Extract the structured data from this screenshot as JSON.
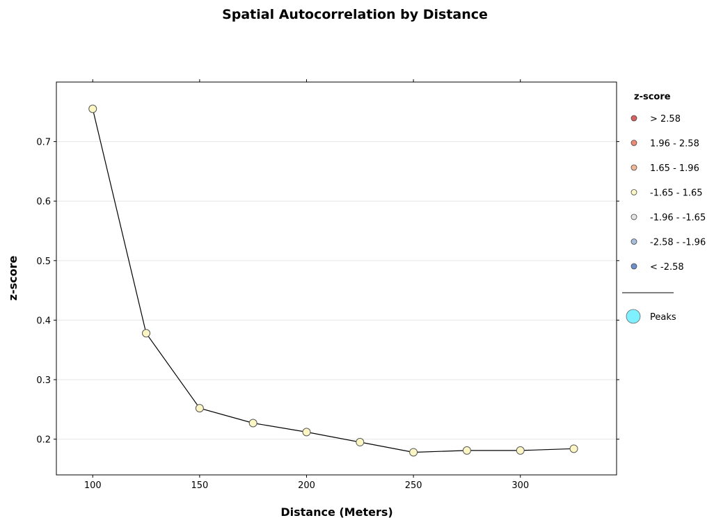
{
  "chart_data": {
    "type": "line",
    "title": "Spatial Autocorrelation by Distance",
    "xlabel": "Distance (Meters)",
    "ylabel": "z-score",
    "x": [
      100,
      125,
      150,
      175,
      200,
      225,
      250,
      275,
      300,
      325
    ],
    "xticks": [
      100,
      150,
      200,
      250,
      300
    ],
    "yticks": [
      0.2,
      0.3,
      0.4,
      0.5,
      0.6,
      0.7
    ],
    "xlim": [
      83,
      345
    ],
    "ylim": [
      0.14,
      0.8
    ],
    "grid": true,
    "series": [
      {
        "values": [
          0.755,
          0.378,
          0.252,
          0.227,
          0.212,
          0.195,
          0.178,
          0.181,
          0.181,
          0.184
        ],
        "classes": [
          "-1.65 - 1.65",
          "-1.65 - 1.65",
          "-1.65 - 1.65",
          "-1.65 - 1.65",
          "-1.65 - 1.65",
          "-1.65 - 1.65",
          "-1.65 - 1.65",
          "-1.65 - 1.65",
          "-1.65 - 1.65",
          "-1.65 - 1.65"
        ]
      }
    ],
    "legend": {
      "title": "z-score",
      "position": "right",
      "items": [
        {
          "label": "> 2.58",
          "color": "#d76060",
          "icon": "red-point-icon"
        },
        {
          "label": "1.96 - 2.58",
          "color": "#ec8a76",
          "icon": "salmon-point-icon"
        },
        {
          "label": "1.65 - 1.96",
          "color": "#f2b896",
          "icon": "peach-point-icon"
        },
        {
          "label": "-1.65 - 1.65",
          "color": "#fbf6c4",
          "icon": "pale-yellow-point-icon"
        },
        {
          "label": "-1.96 - -1.65",
          "color": "#e3e3e3",
          "icon": "light-gray-point-icon"
        },
        {
          "label": "-2.58 - -1.96",
          "color": "#a9bedc",
          "icon": "light-blue-point-icon"
        },
        {
          "label": "< -2.58",
          "color": "#6d8fcb",
          "icon": "blue-point-icon"
        }
      ],
      "peaks": {
        "label": "Peaks",
        "color": "#7ff0ff",
        "icon": "peak-marker-icon"
      }
    },
    "colors": {
      "line": "#000000",
      "grid": "#e6e6e6",
      "point_fill": "#fbf6c4"
    }
  }
}
